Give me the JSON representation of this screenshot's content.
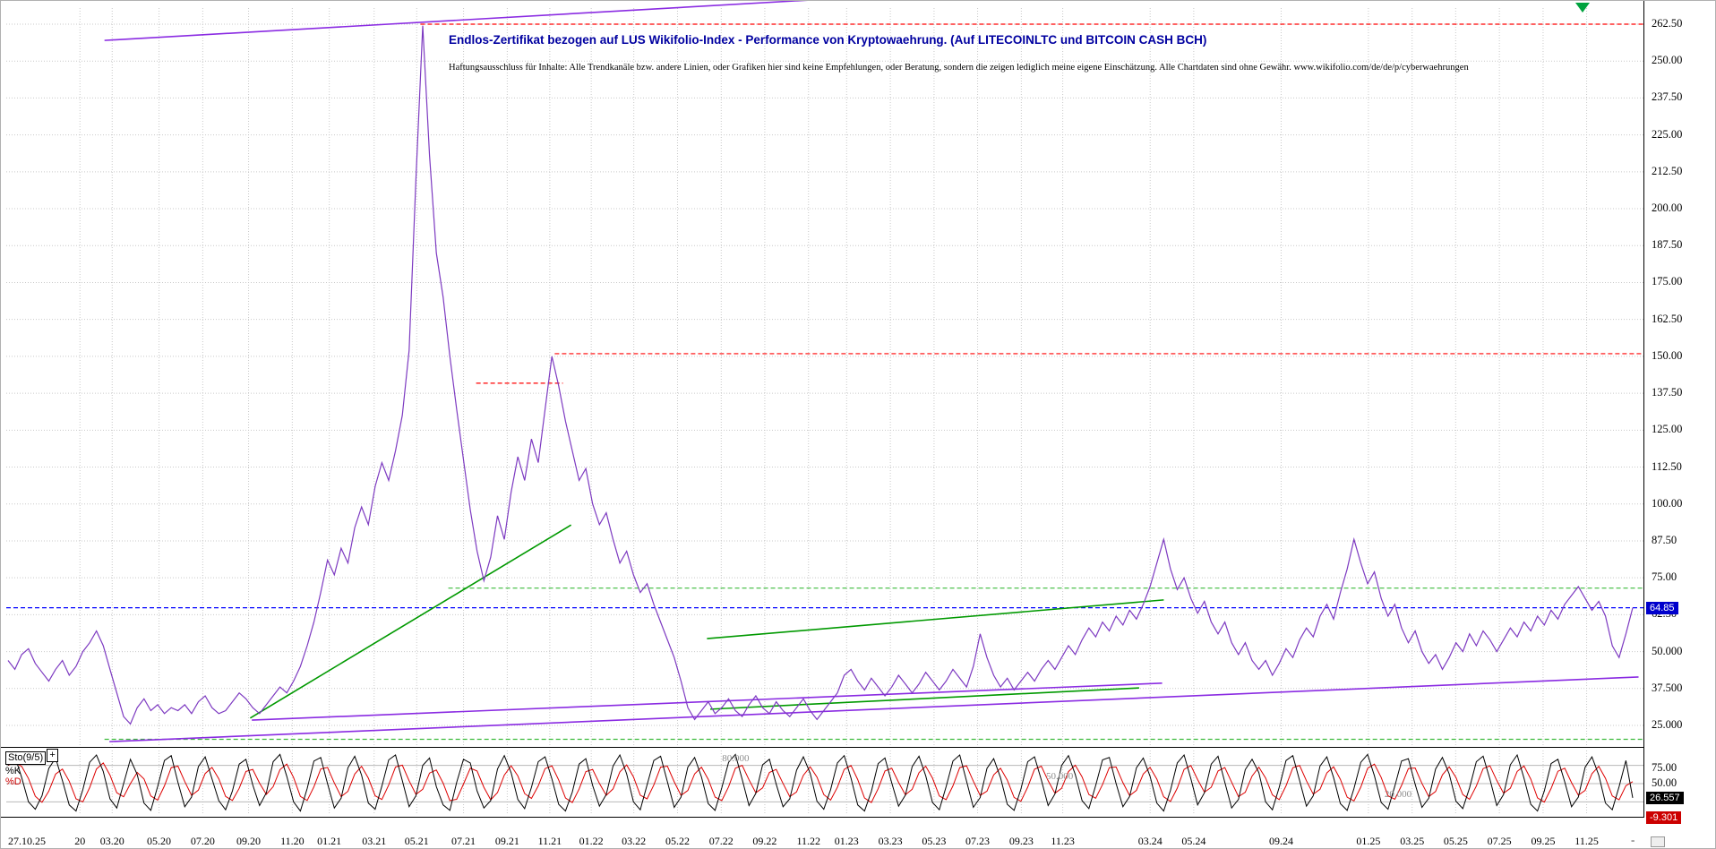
{
  "header": {
    "title": "Endlos-Zertifikat bezogen auf LUS Wikifolio-Index - Performance von Kryptowaehrung. (Auf LITECOINLTC und BITCOIN CASH BCH)",
    "disclaimer": "Haftungsausschluss für Inhalte: Alle Trendkanäle bzw. andere Linien, oder Grafiken hier sind keine Empfehlungen, oder Beratung, sondern die zeigen lediglich meine eigene Einschätzung. Alle Chartdaten sind ohne Gewähr.  www.wikifolio.com/de/de/p/cyberwaehrungen"
  },
  "indicator": {
    "label": "Sto(9/5)",
    "expand_label": "+",
    "k_label": "%K",
    "d_label": "%D",
    "k_value": "26.557",
    "d_value": "-9.301"
  },
  "price_scale": {
    "current": "64.85"
  },
  "corner": {
    "dash": "-"
  },
  "chart_data": {
    "type": "line",
    "title": "Endlos-Zertifikat bezogen auf LUS Wikifolio-Index - Performance von Kryptowaehrung. (Auf LITECOINLTC und BITCOIN CASH BCH)",
    "grid": true,
    "grid_color": "#c9c9c9",
    "legend": [
      "%K",
      "%D"
    ],
    "y_range": [
      18,
      270
    ],
    "osc_range": [
      0,
      100
    ],
    "x_axis": [
      {
        "t": "27.10.25",
        "f": 0.006,
        "grid": false
      },
      {
        "t": "20",
        "f": 0.045
      },
      {
        "t": "03.20",
        "f": 0.0647
      },
      {
        "t": "05.20",
        "f": 0.0933
      },
      {
        "t": "07.20",
        "f": 0.12
      },
      {
        "t": "09.20",
        "f": 0.148
      },
      {
        "t": "11.20",
        "f": 0.1747
      },
      {
        "t": "01.21",
        "f": 0.1973
      },
      {
        "t": "03.21",
        "f": 0.2247
      },
      {
        "t": "05.21",
        "f": 0.2507
      },
      {
        "t": "07.21",
        "f": 0.2793
      },
      {
        "t": "09.21",
        "f": 0.306
      },
      {
        "t": "11.21",
        "f": 0.332
      },
      {
        "t": "01.22",
        "f": 0.3573
      },
      {
        "t": "03.22",
        "f": 0.3833
      },
      {
        "t": "05.22",
        "f": 0.41
      },
      {
        "t": "07.22",
        "f": 0.4367
      },
      {
        "t": "09.22",
        "f": 0.4633
      },
      {
        "t": "11.22",
        "f": 0.49
      },
      {
        "t": "01.23",
        "f": 0.5133
      },
      {
        "t": "03.23",
        "f": 0.54
      },
      {
        "t": "05.23",
        "f": 0.5667
      },
      {
        "t": "07.23",
        "f": 0.5933
      },
      {
        "t": "09.23",
        "f": 0.62
      },
      {
        "t": "11.23",
        "f": 0.6453
      },
      {
        "t": "03.24",
        "f": 0.6987
      },
      {
        "t": "05.24",
        "f": 0.7253
      },
      {
        "t": "09.24",
        "f": 0.7787
      },
      {
        "t": "01.25",
        "f": 0.832
      },
      {
        "t": "03.25",
        "f": 0.8587
      },
      {
        "t": "05.25",
        "f": 0.8853
      },
      {
        "t": "07.25",
        "f": 0.912
      },
      {
        "t": "09.25",
        "f": 0.9387
      },
      {
        "t": "11.25",
        "f": 0.9653
      }
    ],
    "y_ticks": [
      {
        "t": "262.50",
        "v": 262.5
      },
      {
        "t": "250.00",
        "v": 250
      },
      {
        "t": "237.50",
        "v": 237.5
      },
      {
        "t": "225.00",
        "v": 225
      },
      {
        "t": "212.50",
        "v": 212.5
      },
      {
        "t": "200.00",
        "v": 200
      },
      {
        "t": "187.50",
        "v": 187.5
      },
      {
        "t": "175.00",
        "v": 175
      },
      {
        "t": "162.50",
        "v": 162.5
      },
      {
        "t": "150.00",
        "v": 150
      },
      {
        "t": "137.50",
        "v": 137.5
      },
      {
        "t": "125.00",
        "v": 125
      },
      {
        "t": "112.50",
        "v": 112.5
      },
      {
        "t": "100.00",
        "v": 100
      },
      {
        "t": "87.50",
        "v": 87.5
      },
      {
        "t": "75.00",
        "v": 75
      },
      {
        "t": "62.50",
        "v": 62.5
      },
      {
        "t": "50.000",
        "v": 50
      },
      {
        "t": "37.500",
        "v": 37.5
      },
      {
        "t": "25.000",
        "v": 25
      }
    ],
    "osc_ticks": [
      {
        "t": "75.00",
        "v": 75
      },
      {
        "t": "50.00",
        "v": 50
      },
      {
        "t": "25.00",
        "v": 25
      }
    ],
    "osc_levels": [
      {
        "t": "80.000",
        "v": 80,
        "f": 0.4455
      },
      {
        "t": "50.000",
        "v": 50,
        "f": 0.6434
      },
      {
        "t": "20.000",
        "v": 20,
        "f": 0.8501
      }
    ],
    "ref_lines": [
      {
        "v": 262.5,
        "x1": 0.253,
        "x2": 1,
        "color": "#ff0000"
      },
      {
        "v": 150.9,
        "x1": 0.335,
        "x2": 1,
        "color": "#ff0000"
      },
      {
        "v": 140.9,
        "x1": 0.287,
        "x2": 0.34,
        "color": "#ff0000"
      },
      {
        "v": 71.5,
        "x1": 0.27,
        "x2": 1,
        "color": "#3dbb3d"
      },
      {
        "v": 20.3,
        "x1": 0.06,
        "x2": 1,
        "color": "#3dbb3d"
      },
      {
        "v": 64.85,
        "x1": 0,
        "x2": 1,
        "color": "#0000ff"
      }
    ],
    "trend_lines": [
      {
        "x1": 0.06,
        "v1": 257,
        "x2": 0.517,
        "v2": 271.5,
        "color": "#8a2be2"
      },
      {
        "x1": 0.063,
        "v1": 19.5,
        "x2": 0.997,
        "v2": 41.4,
        "color": "#8a2be2"
      },
      {
        "x1": 0.15,
        "v1": 26.8,
        "x2": 0.706,
        "v2": 39.3,
        "color": "#8a2be2"
      },
      {
        "x1": 0.149,
        "v1": 27.5,
        "x2": 0.345,
        "v2": 92.9,
        "color": "#009900"
      },
      {
        "x1": 0.428,
        "v1": 54.4,
        "x2": 0.707,
        "v2": 67.5,
        "color": "#009900"
      },
      {
        "x1": 0.43,
        "v1": 30.5,
        "x2": 0.692,
        "v2": 37.7,
        "color": "#009900"
      }
    ],
    "series": [
      {
        "name": "LUS Wikifolio-Index Kryptowaehrung Zertifikat",
        "panel": "price",
        "color": "#7d3ac1",
        "last_value": 64.85,
        "values": [
          47,
          44,
          49,
          51,
          46,
          43,
          40,
          44,
          47,
          42,
          45,
          50,
          53,
          57,
          52,
          44,
          36,
          28,
          25.5,
          31,
          34,
          30,
          32,
          29,
          31,
          30,
          32,
          29,
          33,
          35,
          31,
          29,
          30,
          33,
          36,
          34,
          31,
          29,
          32,
          35,
          38,
          36,
          40,
          45,
          52,
          60,
          70,
          81,
          76,
          85,
          80,
          92,
          99,
          93,
          106,
          114,
          108,
          118,
          130,
          152,
          210,
          262,
          218,
          185,
          170,
          150,
          132,
          115,
          98,
          84,
          74,
          82,
          96,
          88,
          104,
          116,
          108,
          122,
          114,
          132,
          150,
          140,
          128,
          118,
          108,
          112,
          100,
          93,
          97,
          88,
          80,
          84,
          76,
          70,
          73,
          66,
          60,
          54,
          48,
          40,
          31,
          27,
          30,
          33,
          29,
          31,
          34,
          30,
          28,
          32,
          35,
          31,
          29,
          33,
          30,
          28,
          31,
          34,
          30,
          27,
          30,
          33,
          36,
          42,
          44,
          40,
          37,
          41,
          38,
          35,
          38,
          42,
          39,
          36,
          39,
          43,
          40,
          37,
          40,
          44,
          41,
          38,
          45,
          56,
          48,
          42,
          38,
          41,
          37,
          40,
          43,
          40,
          44,
          47,
          44,
          48,
          52,
          49,
          54,
          58,
          55,
          60,
          57,
          62,
          59,
          64,
          61,
          66,
          72,
          80,
          88,
          78,
          71,
          75,
          68,
          63,
          67,
          60,
          56,
          60,
          53,
          49,
          53,
          47,
          44,
          47,
          42,
          46,
          51,
          48,
          54,
          58,
          55,
          62,
          66,
          61,
          70,
          78,
          88,
          80,
          73,
          77,
          68,
          62,
          66,
          58,
          53,
          57,
          50,
          46,
          49,
          44,
          48,
          53,
          50,
          56,
          52,
          57,
          54,
          50,
          54,
          58,
          55,
          60,
          57,
          62,
          59,
          64,
          61,
          66,
          69,
          72,
          68,
          64,
          67,
          62,
          52,
          48,
          56,
          64.85
        ]
      },
      {
        "name": "Stochastik %K",
        "panel": "oscillator",
        "color": "#000000",
        "last_value": 26.557,
        "values": [
          80,
          95,
          60,
          20,
          8,
          30,
          75,
          92,
          55,
          15,
          5,
          40,
          85,
          97,
          70,
          25,
          10,
          50,
          90,
          65,
          18,
          6,
          45,
          88,
          96,
          52,
          12,
          28,
          78,
          94,
          58,
          22,
          7,
          38,
          82,
          90,
          48,
          14,
          35,
          86,
          98,
          62,
          20,
          5,
          42,
          87,
          93,
          50,
          10,
          26,
          76,
          95,
          64,
          18,
          8,
          46,
          89,
          97,
          55,
          12,
          30,
          80,
          92,
          45,
          15,
          6,
          52,
          90,
          84,
          38,
          10,
          22,
          74,
          96,
          68,
          24,
          9,
          44,
          86,
          94,
          58,
          16,
          5,
          36,
          82,
          91,
          47,
          13,
          32,
          79,
          97,
          66,
          20,
          7,
          48,
          88,
          95,
          53,
          11,
          28,
          77,
          93,
          61,
          17,
          6,
          43,
          85,
          98,
          57,
          14,
          34,
          81,
          90,
          49,
          12,
          25,
          72,
          94,
          67,
          21,
          8,
          40,
          84,
          96,
          59,
          15,
          5,
          37,
          83,
          92,
          51,
          13,
          31,
          78,
          95,
          63,
          19,
          7,
          45,
          87,
          97,
          54,
          11,
          27,
          75,
          91,
          60,
          16,
          6,
          41,
          86,
          94,
          56,
          14,
          33,
          80,
          96,
          65,
          22,
          9,
          47,
          89,
          93,
          50,
          12,
          29,
          76,
          92,
          62,
          18,
          5,
          39,
          84,
          97,
          58,
          15,
          35,
          82,
          95,
          52,
          10,
          24,
          73,
          90,
          68,
          20,
          7,
          44,
          88,
          96,
          55,
          13,
          30,
          79,
          94,
          60,
          17,
          6,
          42,
          85,
          98,
          63,
          19,
          8,
          46,
          87,
          91,
          49,
          11,
          26,
          74,
          93,
          66,
          21,
          9,
          43,
          86,
          95,
          57,
          14,
          32,
          81,
          97,
          59,
          16,
          5,
          38,
          83,
          90,
          53,
          12,
          28,
          77,
          94,
          64,
          18,
          7,
          45,
          88,
          26.557
        ]
      },
      {
        "name": "Stochastik %D",
        "panel": "oscillator",
        "color": "#dd0000",
        "last_value": -9.301,
        "derived": "smoothed %K"
      }
    ]
  }
}
